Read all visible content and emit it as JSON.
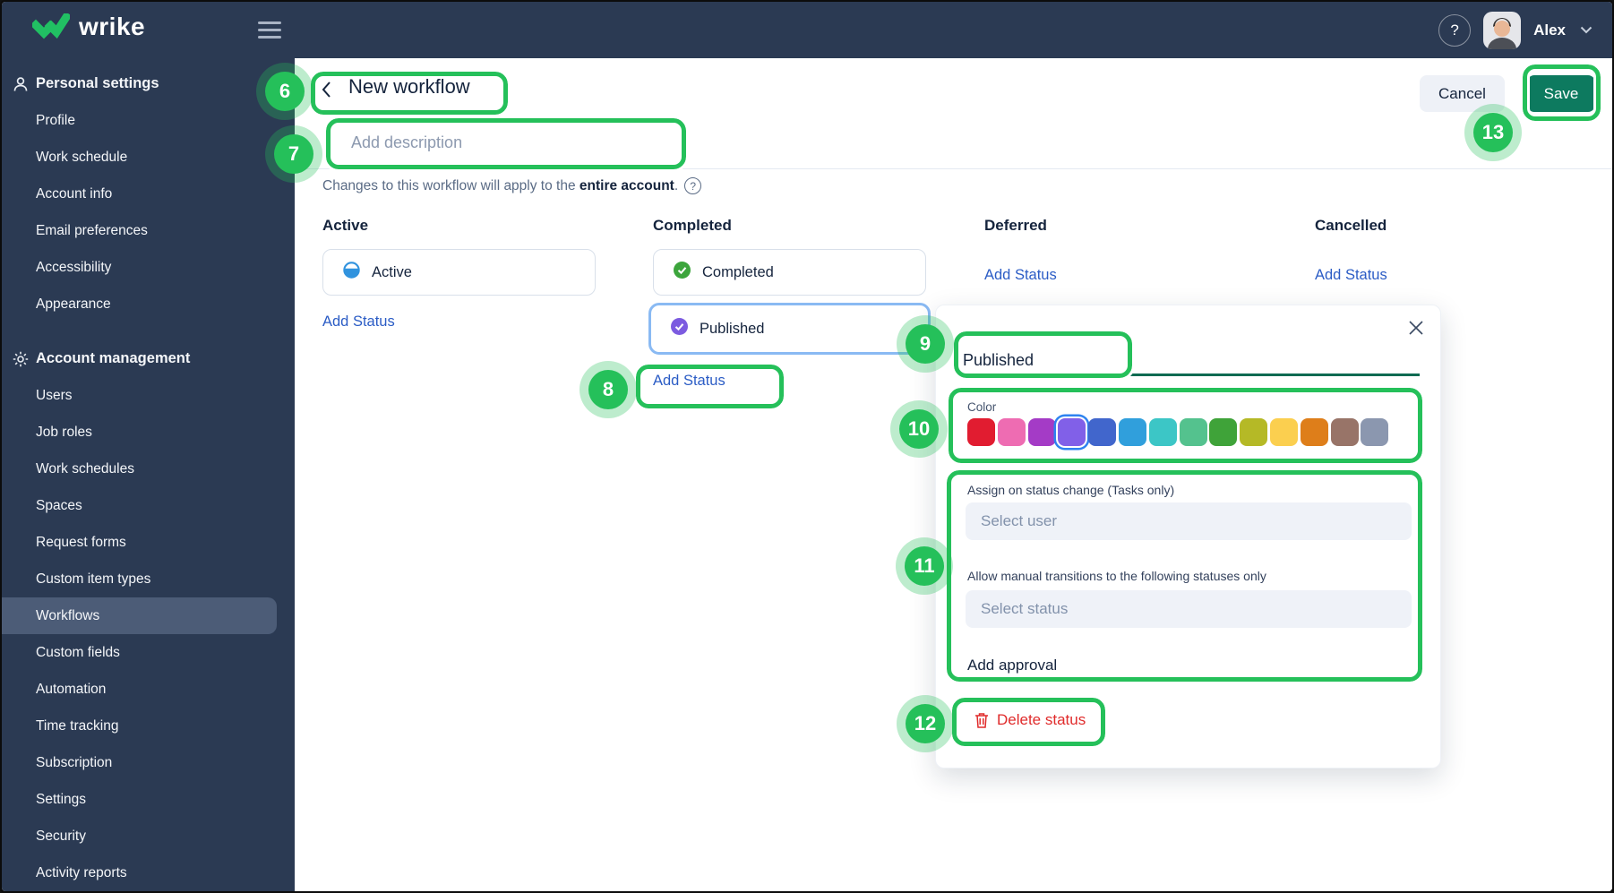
{
  "topbar": {
    "logo_text": "wrike",
    "user_name": "Alex"
  },
  "sidebar": {
    "active_item": "Workflows",
    "sections": [
      {
        "label": "Personal settings",
        "icon": "person-icon",
        "items": [
          "Profile",
          "Work schedule",
          "Account info",
          "Email preferences",
          "Accessibility",
          "Appearance"
        ]
      },
      {
        "label": "Account management",
        "icon": "gear-icon",
        "items": [
          "Users",
          "Job roles",
          "Work schedules",
          "Spaces",
          "Request forms",
          "Custom item types",
          "Workflows",
          "Custom fields",
          "Automation",
          "Time tracking",
          "Subscription",
          "Settings",
          "Security",
          "Activity reports"
        ]
      }
    ]
  },
  "header": {
    "title": "New workflow",
    "description_placeholder": "Add description",
    "cancel_label": "Cancel",
    "save_label": "Save",
    "notice_prefix": "Changes to this workflow will apply to the ",
    "notice_bold": "entire account",
    "notice_suffix": "."
  },
  "columns": [
    {
      "title": "Active",
      "add_status": "Add Status",
      "statuses": [
        {
          "name": "Active",
          "icon": "half-circle",
          "color": "#3193de",
          "selected": false
        }
      ]
    },
    {
      "title": "Completed",
      "add_status": "Add Status",
      "statuses": [
        {
          "name": "Completed",
          "icon": "check-circle",
          "color": "#3ca53c",
          "selected": false
        },
        {
          "name": "Published",
          "icon": "check-circle",
          "color": "#7c5be0",
          "selected": true
        }
      ]
    },
    {
      "title": "Deferred",
      "add_status": "Add Status",
      "statuses": []
    },
    {
      "title": "Cancelled",
      "add_status": "Add Status",
      "statuses": []
    }
  ],
  "popup": {
    "title_value": "Published",
    "color_label": "Color",
    "colors": [
      "#e11c30",
      "#ee6cb2",
      "#a43bc6",
      "#8160e8",
      "#4166cc",
      "#309fdc",
      "#3cc6c6",
      "#54c28e",
      "#3fa339",
      "#b5b926",
      "#fbcf4f",
      "#de7e1a",
      "#987468",
      "#8b97af"
    ],
    "selected_color_index": 3,
    "selected_color_ring": "#2e83f0",
    "assign_label": "Assign on status change (Tasks only)",
    "assign_placeholder": "Select user",
    "transitions_label": "Allow manual transitions to the following statuses only",
    "transitions_placeholder": "Select status",
    "add_approval_label": "Add approval",
    "delete_label": "Delete status"
  },
  "annotations": {
    "accent": "#25c05a",
    "numbers": [
      "6",
      "7",
      "8",
      "9",
      "10",
      "11",
      "12",
      "13"
    ]
  }
}
